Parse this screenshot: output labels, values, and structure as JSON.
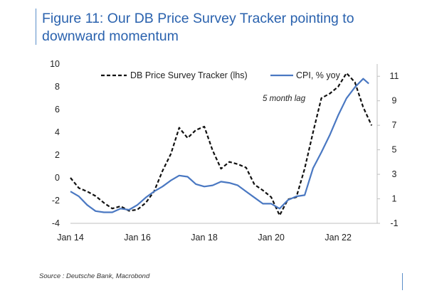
{
  "figure": {
    "title": "Figure 11: Our DB Price Survey Tracker pointing to downward momentum",
    "source": "Source : Deutsche Bank, Macrobond"
  },
  "chart_data": {
    "type": "line",
    "title": "Figure 11: Our DB Price Survey Tracker pointing to downward momentum",
    "x_ticks": [
      "Jan 14",
      "Jan 16",
      "Jan 18",
      "Jan 20",
      "Jan 22"
    ],
    "xlim": [
      "2014-01",
      "2023-03"
    ],
    "left_axis": {
      "ylim": [
        -4,
        10
      ],
      "ticks": [
        -4,
        -2,
        0,
        2,
        4,
        6,
        8,
        10
      ]
    },
    "right_axis": {
      "ylim": [
        -1,
        12
      ],
      "ticks": [
        -1,
        1,
        3,
        5,
        7,
        9,
        11
      ]
    },
    "annotation": "5 month lag",
    "legend_position": "top",
    "grid": false,
    "series": [
      {
        "name": "DB Price Survey Tracker (lhs)",
        "axis": "left",
        "style": "dashed",
        "color": "#111111",
        "x": [
          "2014-01",
          "2014-04",
          "2014-07",
          "2014-10",
          "2015-01",
          "2015-04",
          "2015-07",
          "2015-10",
          "2016-01",
          "2016-04",
          "2016-07",
          "2016-10",
          "2017-01",
          "2017-04",
          "2017-07",
          "2017-10",
          "2018-01",
          "2018-04",
          "2018-07",
          "2018-10",
          "2019-01",
          "2019-04",
          "2019-07",
          "2019-10",
          "2020-01",
          "2020-04",
          "2020-07",
          "2020-10",
          "2021-01",
          "2021-04",
          "2021-07",
          "2021-10",
          "2022-01",
          "2022-04",
          "2022-07",
          "2022-10",
          "2023-01"
        ],
        "values": [
          0.0,
          -0.9,
          -1.2,
          -1.6,
          -2.2,
          -2.7,
          -2.5,
          -2.9,
          -2.8,
          -2.2,
          -1.2,
          0.6,
          2.1,
          4.4,
          3.5,
          4.2,
          4.5,
          2.4,
          0.8,
          1.4,
          1.2,
          0.9,
          -0.6,
          -1.1,
          -1.7,
          -3.3,
          -1.9,
          -1.7,
          0.8,
          4.0,
          7.0,
          7.4,
          8.0,
          9.2,
          8.4,
          6.2,
          4.6
        ]
      },
      {
        "name": "CPI, % yoy",
        "axis": "right",
        "style": "solid",
        "color": "#4a78c2",
        "x": [
          "2014-01",
          "2014-04",
          "2014-07",
          "2014-10",
          "2015-01",
          "2015-04",
          "2015-07",
          "2015-10",
          "2016-01",
          "2016-04",
          "2016-07",
          "2016-10",
          "2017-01",
          "2017-04",
          "2017-07",
          "2017-10",
          "2018-01",
          "2018-04",
          "2018-07",
          "2018-10",
          "2019-01",
          "2019-04",
          "2019-07",
          "2019-10",
          "2020-01",
          "2020-04",
          "2020-07",
          "2020-10",
          "2021-01",
          "2021-04",
          "2021-07",
          "2021-10",
          "2022-01",
          "2022-04",
          "2022-07",
          "2022-10",
          "2022-12"
        ],
        "values": [
          1.6,
          1.2,
          0.5,
          0.0,
          -0.1,
          -0.1,
          0.2,
          0.1,
          0.5,
          1.1,
          1.6,
          2.0,
          2.5,
          2.9,
          2.8,
          2.2,
          2.0,
          2.1,
          2.4,
          2.3,
          2.1,
          1.6,
          1.1,
          0.6,
          0.6,
          0.2,
          0.9,
          1.2,
          1.3,
          3.5,
          4.8,
          6.2,
          7.8,
          9.2,
          10.1,
          10.8,
          10.4
        ]
      }
    ]
  }
}
